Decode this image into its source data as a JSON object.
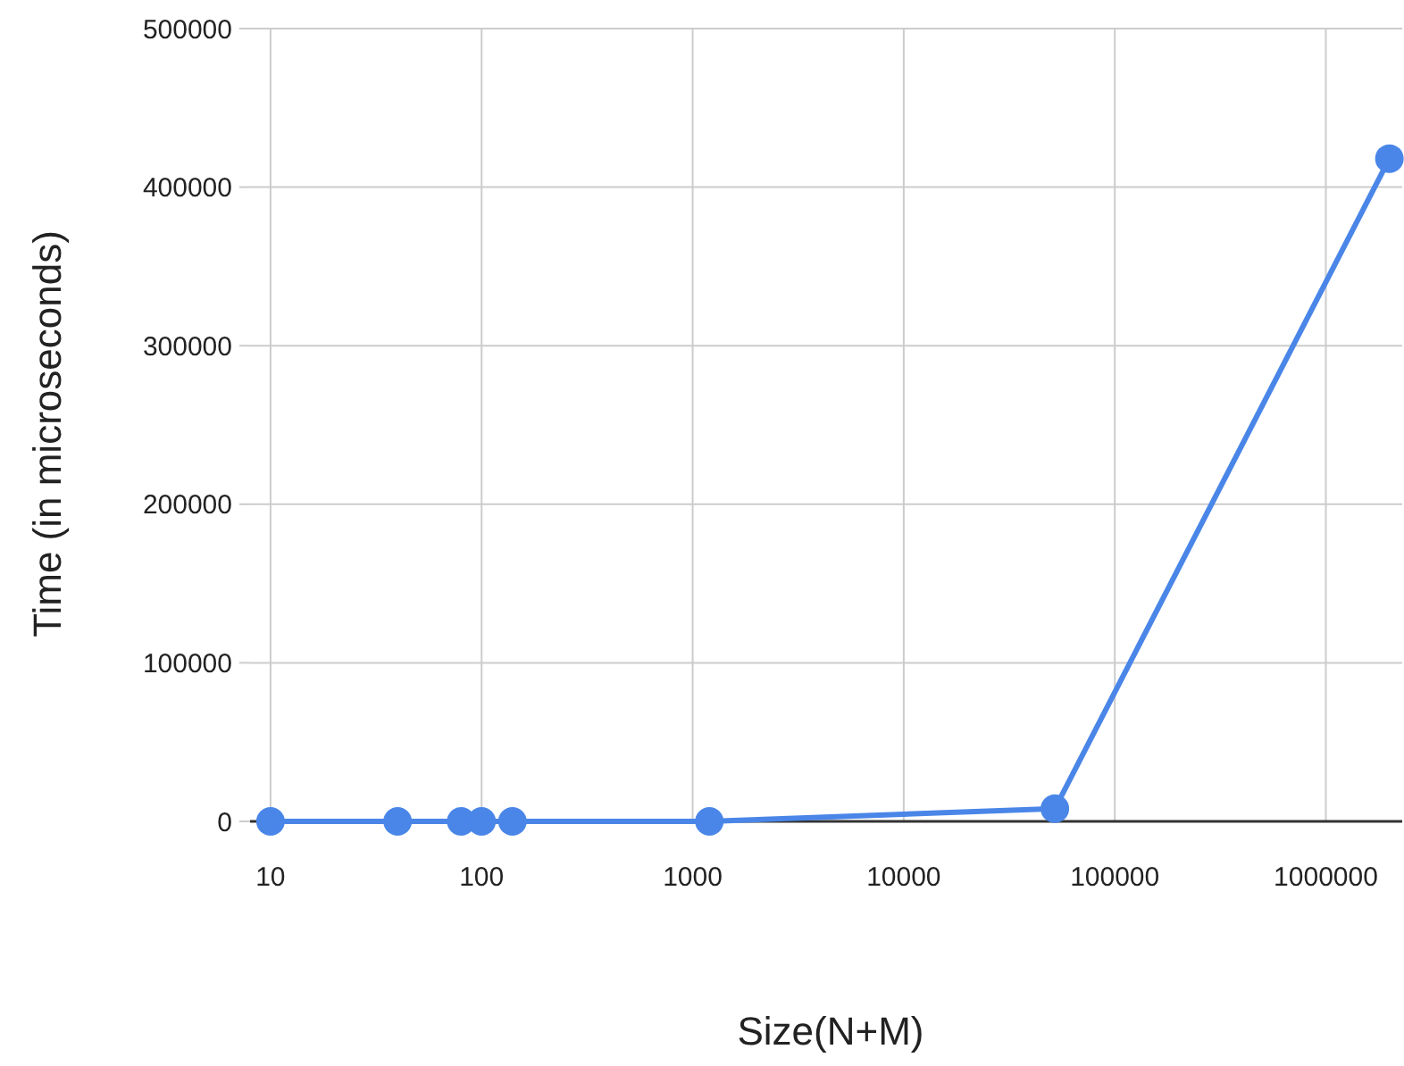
{
  "chart_data": {
    "type": "line",
    "xlabel": "Size(N+M)",
    "ylabel": "Time (in microseconds)",
    "log": "x",
    "x": [
      10,
      40,
      80,
      100,
      140,
      1200,
      52000,
      2000000
    ],
    "series": [
      {
        "color": "#4a86e8",
        "values": [
          0,
          0,
          0,
          0,
          0,
          0,
          8000,
          418000
        ]
      }
    ],
    "xlim": [
      8,
      2300000
    ],
    "xticks": [
      10,
      100,
      1000,
      10000,
      100000,
      1000000
    ],
    "ylim": [
      0,
      500000
    ],
    "yticks": [
      0,
      100000,
      200000,
      300000,
      400000,
      500000
    ],
    "grid": true,
    "marker": "circle"
  }
}
